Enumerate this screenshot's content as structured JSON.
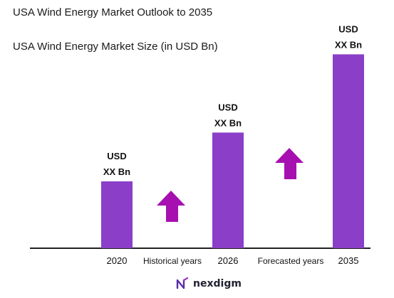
{
  "title": "USA Wind Energy Market Outlook to 2035",
  "subtitle": "USA Wind Energy Market Size (in USD Bn)",
  "chart_data": {
    "type": "bar",
    "categories": [
      "2020",
      "2026",
      "2035"
    ],
    "values": [
      1.0,
      1.73,
      2.9
    ],
    "data_label_line1": "USD",
    "data_label_line2": "XX Bn",
    "bar_color": "#8b3ec8",
    "arrow_color": "#a610b0",
    "axis_color": "#222222",
    "annotations": [
      {
        "text": "Historical years",
        "after_index": 0
      },
      {
        "text": "Forecasted years",
        "after_index": 1
      }
    ],
    "grid": false,
    "legend": "none"
  },
  "brand": {
    "name": "nexdigm",
    "icon": "nexdigm-logo-icon",
    "color": "#5a2ea8"
  }
}
